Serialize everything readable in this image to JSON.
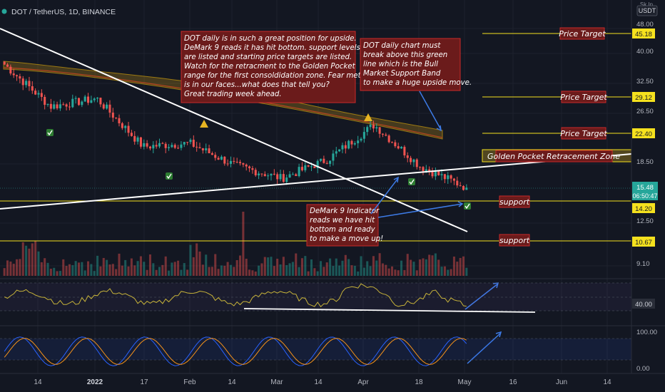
{
  "header": {
    "symbol": "DOT / TetherUS, 1D, BINANCE",
    "log_mark": "Sk In",
    "currency": "USDT"
  },
  "price_axis": {
    "ticks": [
      "48.00",
      "40.00",
      "32.50",
      "26.50",
      "18.50",
      "12.50",
      "9.10"
    ],
    "current_price": "15.48",
    "countdown": "06:50:47"
  },
  "time_axis": {
    "ticks": [
      "14",
      "2022",
      "17",
      "Feb",
      "14",
      "Mar",
      "14",
      "Apr",
      "18",
      "May",
      "16",
      "Jun",
      "14"
    ]
  },
  "levels": [
    {
      "label": "Price Target",
      "value": "45.18"
    },
    {
      "label": "Price Target",
      "value": "29.12"
    },
    {
      "label": "Price Target",
      "value": "22.40"
    },
    {
      "label": "Golden Pocket Retracement  Zone",
      "value": ""
    },
    {
      "label": "support",
      "value": "14.20"
    },
    {
      "label": "support",
      "value": "10.67"
    }
  ],
  "annotations": {
    "main_note": [
      "DOT daily is in such a great position for upside.",
      "DeMark 9 reads it has hit bottom. support levels",
      "are listed and starting price targets are listed.",
      "Watch for the retracment to the Golden Pocket",
      " range for the first consoldidation zone. Fear meter",
      "is in our faces...what does that tell you?",
      "Great trading week ahead."
    ],
    "band_note": [
      "DOT daily chart must",
      "break above this green",
      "line which is the Bull",
      "Market Support Band",
      "to make a huge upside move."
    ],
    "demark_note": [
      "DeMark 9 Indicator",
      "reads we have hit",
      "bottom and ready",
      "to make a move up!"
    ]
  },
  "indicators": {
    "rsi_tick": "40.00",
    "stoch_ticks": [
      "100.00",
      "0.00"
    ]
  },
  "colors": {
    "background": "#131722",
    "up": "#26a69a",
    "down": "#ef5350",
    "level_line": "#f5e11e",
    "note_box": "#6b1b1b",
    "note_border": "#c92a2a",
    "arrow": "#3d7be6",
    "trendline": "#ffffff",
    "band": "#d4a017"
  },
  "chart_data": {
    "type": "candlestick",
    "title": "DOT / TetherUS, 1D, BINANCE",
    "x": [
      "2021-12-04",
      "2021-12-14",
      "2022-01-01",
      "2022-01-17",
      "2022-02-01",
      "2022-02-14",
      "2022-03-01",
      "2022-03-14",
      "2022-04-01",
      "2022-04-18",
      "2022-05-01"
    ],
    "close_path": [
      36.0,
      27.0,
      28.5,
      20.5,
      21.0,
      18.0,
      16.5,
      18.8,
      23.8,
      17.9,
      15.48
    ],
    "yscale": "log",
    "ylim": [
      8.5,
      56
    ],
    "price_targets": [
      45.18,
      29.12,
      22.4
    ],
    "supports": [
      14.2,
      10.67
    ],
    "rsi_ylim": [
      0,
      100
    ],
    "stoch_ylim": [
      0,
      100
    ]
  }
}
